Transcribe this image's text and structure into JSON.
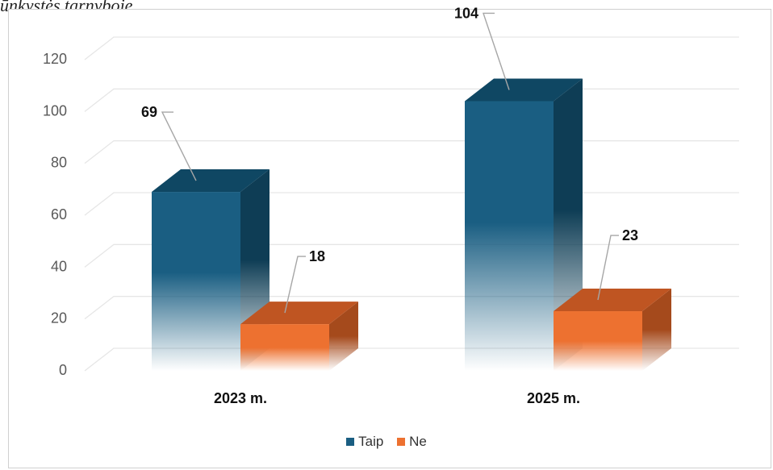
{
  "caption_fragment": "ūnkystės tarnyboje.",
  "chart_data": {
    "type": "bar",
    "title": "",
    "xlabel": "",
    "ylabel": "",
    "categories": [
      "2023 m.",
      "2025 m."
    ],
    "series": [
      {
        "name": "Taip",
        "values": [
          69,
          104
        ],
        "color": "#1a5e82"
      },
      {
        "name": "Ne",
        "values": [
          18,
          23
        ],
        "color": "#ed7130"
      }
    ],
    "ylim": [
      0,
      120
    ],
    "yticks": [
      0,
      20,
      40,
      60,
      80,
      100,
      120
    ],
    "grid": true,
    "legend_position": "bottom",
    "style": "3d-clustered-column"
  }
}
